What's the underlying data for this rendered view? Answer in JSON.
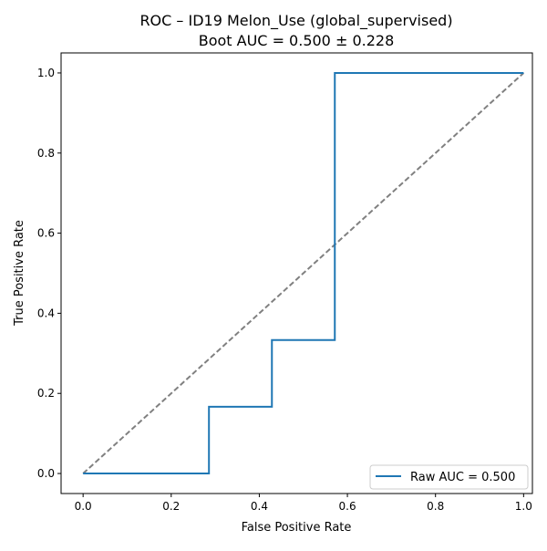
{
  "chart_data": {
    "type": "line",
    "title": "ROC – ID19 Melon_Use (global_supervised)",
    "subtitle": "Boot AUC = 0.500 ± 0.228",
    "xlabel": "False Positive Rate",
    "ylabel": "True Positive Rate",
    "xlim": [
      -0.05,
      1.02
    ],
    "ylim": [
      -0.05,
      1.05
    ],
    "x_ticks": [
      0.0,
      0.2,
      0.4,
      0.6,
      0.8,
      1.0
    ],
    "x_tick_labels": [
      "0.0",
      "0.2",
      "0.4",
      "0.6",
      "0.8",
      "1.0"
    ],
    "y_ticks": [
      0.0,
      0.2,
      0.4,
      0.6,
      0.8,
      1.0
    ],
    "y_tick_labels": [
      "0.0",
      "0.2",
      "0.4",
      "0.6",
      "0.8",
      "1.0"
    ],
    "grid": false,
    "legend_position": "lower-right",
    "series": [
      {
        "name": "Raw AUC = 0.500",
        "color": "#1f77b4",
        "style": "solid",
        "x": [
          0.0,
          0.2857,
          0.2857,
          0.4286,
          0.4286,
          0.5714,
          0.5714,
          1.0
        ],
        "y": [
          0.0,
          0.0,
          0.1667,
          0.1667,
          0.3333,
          0.3333,
          1.0,
          1.0
        ]
      },
      {
        "color": "#808080",
        "style": "dashed",
        "x": [
          0.0,
          1.0
        ],
        "y": [
          0.0,
          1.0
        ]
      }
    ]
  }
}
